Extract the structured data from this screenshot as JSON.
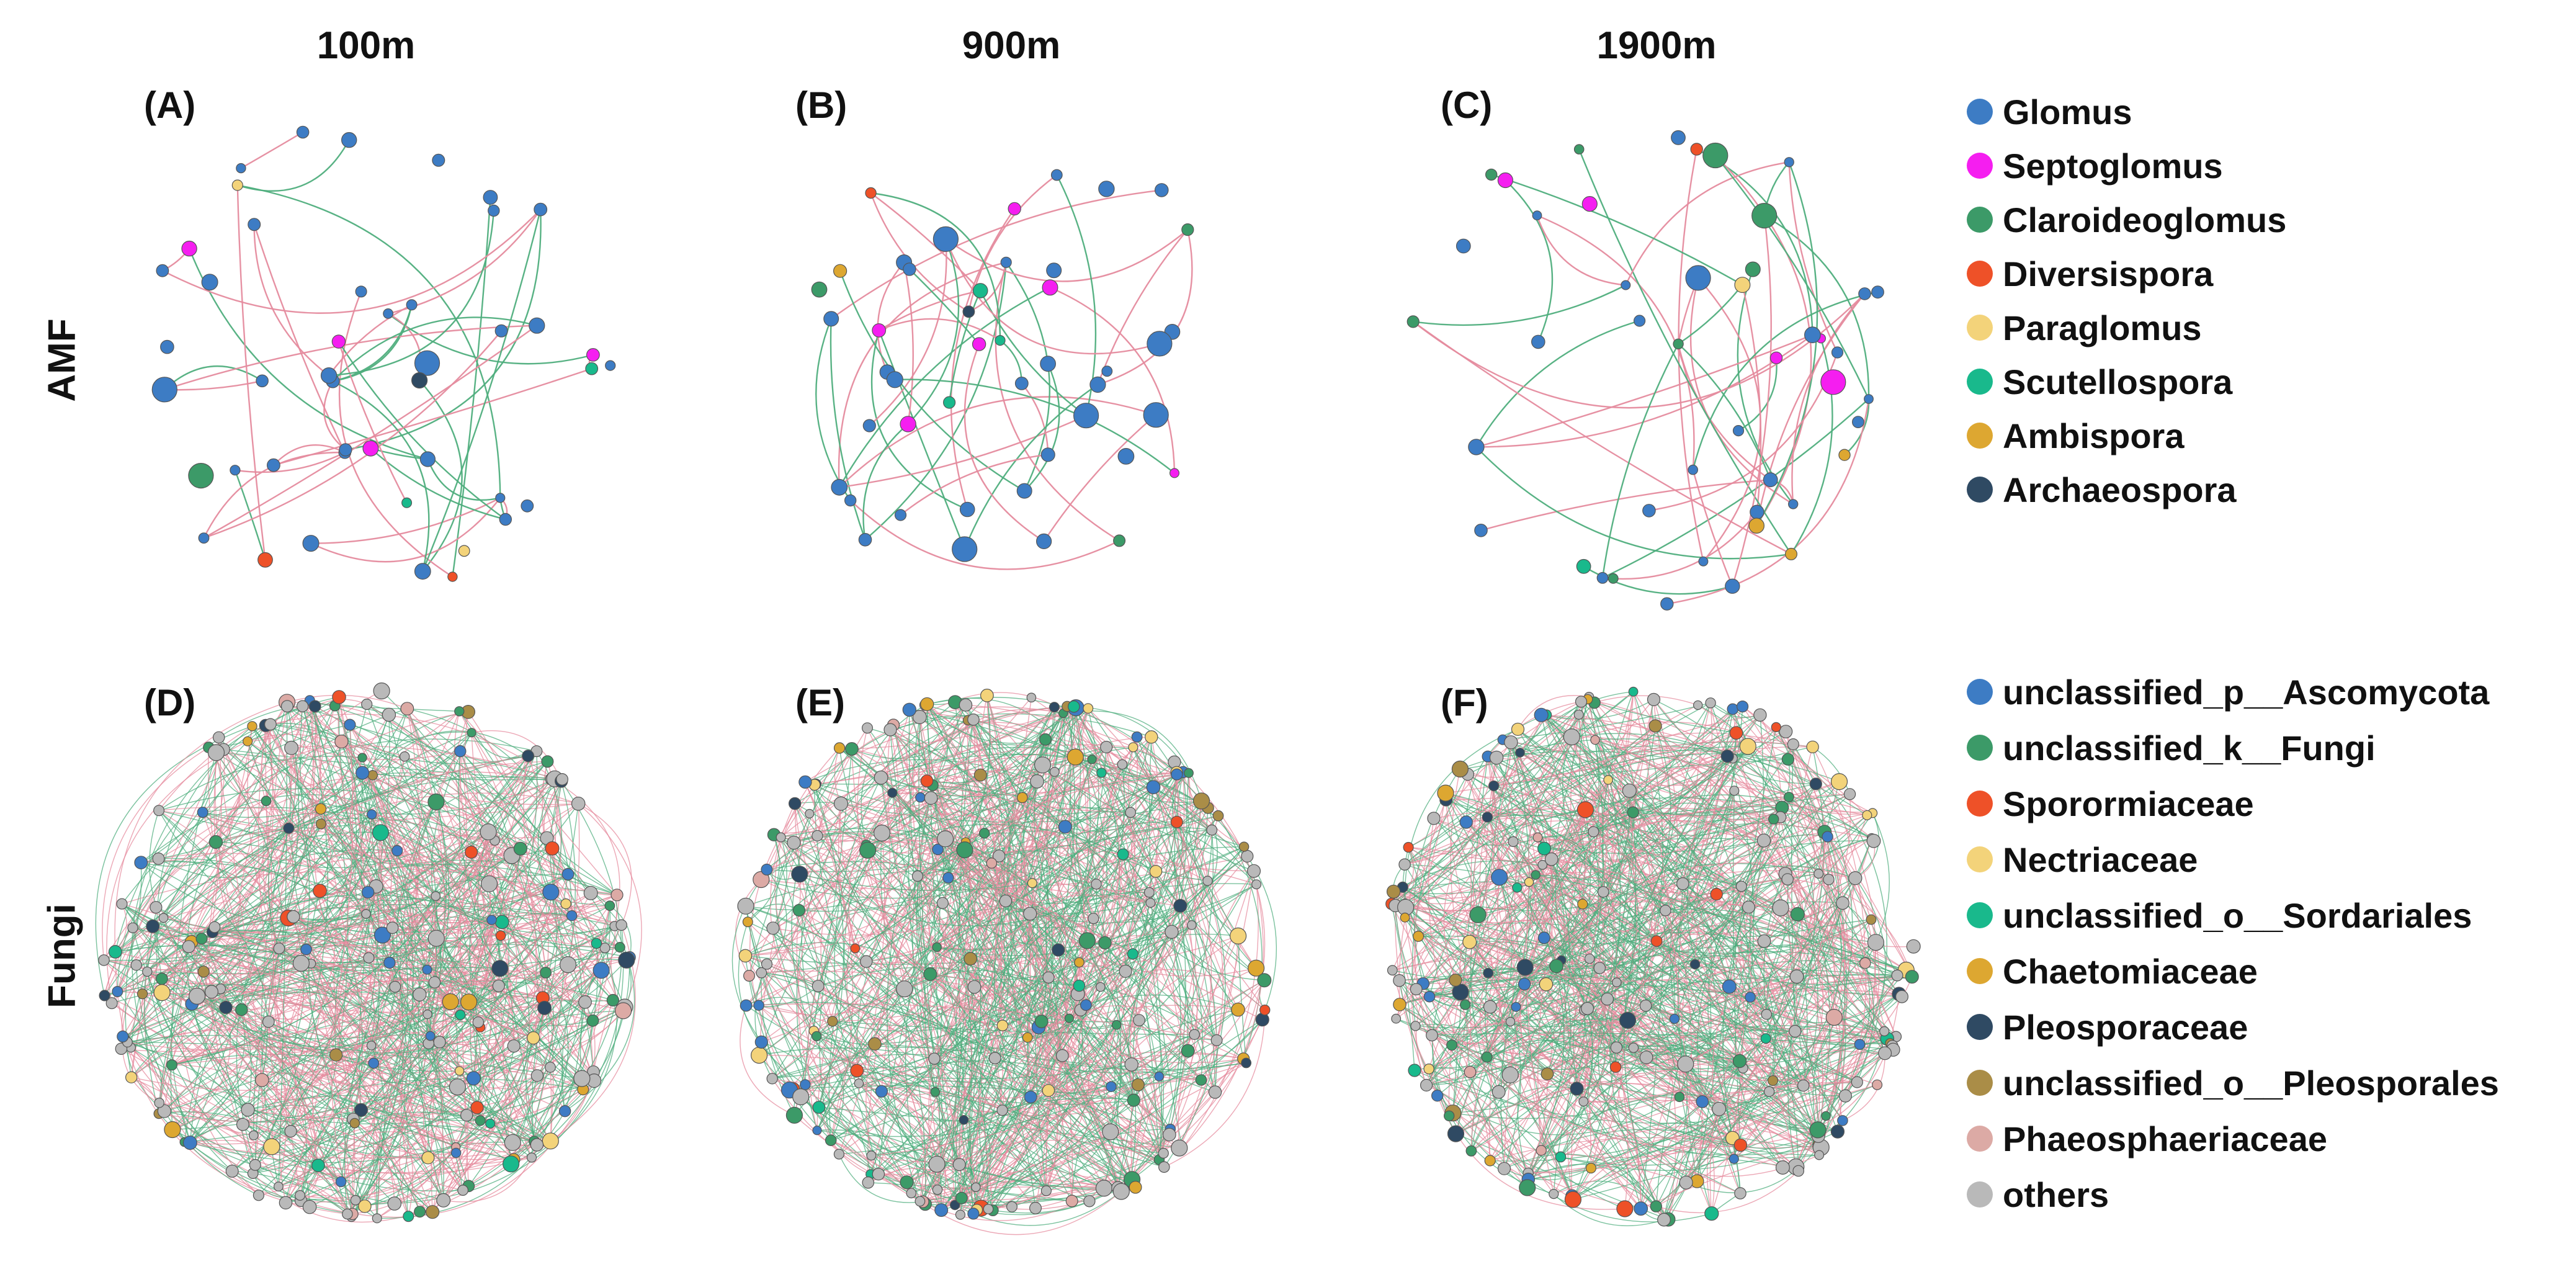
{
  "columns": [
    "100m",
    "900m",
    "1900m"
  ],
  "rows": [
    "AMF",
    "Fungi"
  ],
  "panels": [
    {
      "label": "(A)",
      "row": "AMF",
      "column": "100m",
      "seed": 11,
      "density": "sparse"
    },
    {
      "label": "(B)",
      "row": "AMF",
      "column": "900m",
      "seed": 23,
      "density": "sparse"
    },
    {
      "label": "(C)",
      "row": "AMF",
      "column": "1900m",
      "seed": 37,
      "density": "sparse"
    },
    {
      "label": "(D)",
      "row": "Fungi",
      "column": "100m",
      "seed": 41,
      "density": "dense"
    },
    {
      "label": "(E)",
      "row": "Fungi",
      "column": "900m",
      "seed": 53,
      "density": "dense"
    },
    {
      "label": "(F)",
      "row": "Fungi",
      "column": "1900m",
      "seed": 67,
      "density": "dense"
    }
  ],
  "edge_colors": {
    "positive": "#e58b9e",
    "negative": "#4fae7d"
  },
  "legend_amf": [
    {
      "label": "Glomus",
      "color": "#3d7cc4"
    },
    {
      "label": "Septoglomus",
      "color": "#f51ef0"
    },
    {
      "label": "Claroideoglomus",
      "color": "#3c9a68"
    },
    {
      "label": "Diversispora",
      "color": "#ee5128"
    },
    {
      "label": "Paraglomus",
      "color": "#f3d37a"
    },
    {
      "label": "Scutellospora",
      "color": "#19b98c"
    },
    {
      "label": "Ambispora",
      "color": "#dda731"
    },
    {
      "label": "Archaeospora",
      "color": "#2f4a63"
    }
  ],
  "legend_fungi": [
    {
      "label": "unclassified_p__Ascomycota",
      "color": "#3d7cc4"
    },
    {
      "label": "unclassified_k__Fungi",
      "color": "#3c9a68"
    },
    {
      "label": "Sporormiaceae",
      "color": "#ee5128"
    },
    {
      "label": "Nectriaceae",
      "color": "#f3d37a"
    },
    {
      "label": "unclassified_o__Sordariales",
      "color": "#19b98c"
    },
    {
      "label": "Chaetomiaceae",
      "color": "#dda731"
    },
    {
      "label": "Pleosporaceae",
      "color": "#2f4a63"
    },
    {
      "label": "unclassified_o__Pleosporales",
      "color": "#aa8d47"
    },
    {
      "label": "Phaeosphaeriaceae",
      "color": "#dcaaa5"
    },
    {
      "label": "others",
      "color": "#b9b9b9"
    }
  ]
}
